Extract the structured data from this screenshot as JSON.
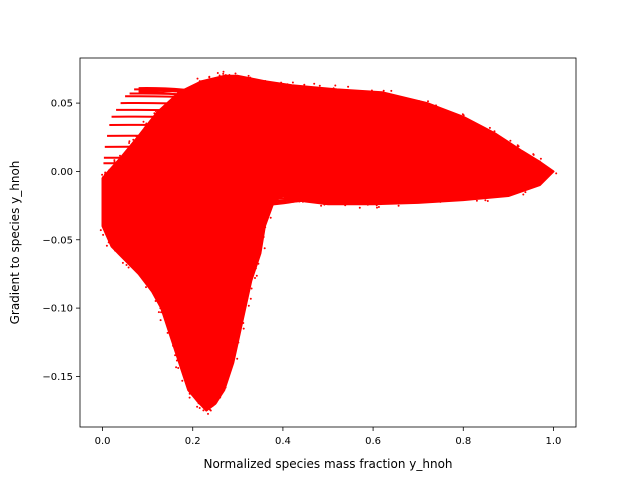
{
  "chart_data": {
    "type": "scatter",
    "title": "",
    "xlabel": "Normalized species mass fraction y_hnoh",
    "ylabel": "Gradient to species y_hnoh",
    "xlim": [
      -0.05,
      1.05
    ],
    "ylim": [
      -0.187,
      0.083
    ],
    "x_ticks": [
      0.0,
      0.2,
      0.4,
      0.6,
      0.8,
      1.0
    ],
    "x_tick_labels": [
      "0.0",
      "0.2",
      "0.4",
      "0.6",
      "0.8",
      "1.0"
    ],
    "y_ticks": [
      0.05,
      0.0,
      -0.05,
      -0.1,
      -0.15
    ],
    "y_tick_labels": [
      "0.05",
      "0.00",
      "−0.05",
      "−0.10",
      "−0.15"
    ],
    "grid": false,
    "legend": "none",
    "marker_color": "#ff0000",
    "series": [
      {
        "region": "main filled cloud boundary (approximate)",
        "x": [
          0.0,
          0.01,
          0.04,
          0.08,
          0.12,
          0.17,
          0.22,
          0.27,
          0.3,
          0.33,
          0.36,
          0.42,
          0.52,
          0.62,
          0.72,
          0.8,
          0.87,
          0.93,
          0.97,
          1.0,
          0.97,
          0.9,
          0.8,
          0.7,
          0.6,
          0.5,
          0.45,
          0.42,
          0.4,
          0.38,
          0.36,
          0.35,
          0.33,
          0.31,
          0.29,
          0.27,
          0.25,
          0.23,
          0.21,
          0.19,
          0.17,
          0.15,
          0.13,
          0.11,
          0.08,
          0.05,
          0.02,
          0.0
        ],
        "y": [
          -0.005,
          -0.001,
          0.01,
          0.026,
          0.043,
          0.058,
          0.066,
          0.07,
          0.07,
          0.068,
          0.066,
          0.063,
          0.06,
          0.058,
          0.05,
          0.04,
          0.028,
          0.015,
          0.007,
          0.0,
          -0.01,
          -0.018,
          -0.021,
          -0.023,
          -0.024,
          -0.024,
          -0.022,
          -0.02,
          -0.018,
          -0.022,
          -0.04,
          -0.06,
          -0.08,
          -0.11,
          -0.14,
          -0.16,
          -0.17,
          -0.175,
          -0.168,
          -0.16,
          -0.14,
          -0.12,
          -0.1,
          -0.088,
          -0.075,
          -0.065,
          -0.055,
          -0.04
        ]
      }
    ]
  }
}
